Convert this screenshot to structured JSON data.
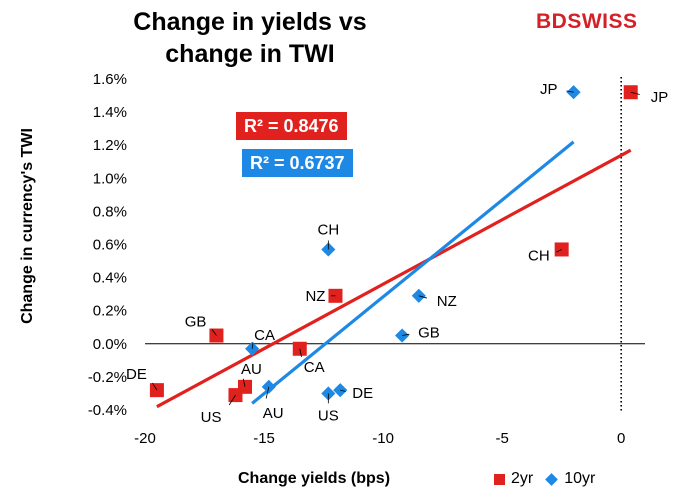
{
  "title_line1": "Change in yields vs",
  "title_line2": "change in TWI",
  "logo_text": "BDSWISS",
  "r2_2yr": "R² = 0.8476",
  "r2_10yr": "R² = 0.6737",
  "legend": {
    "two_yr": "2yr",
    "ten_yr": "10yr"
  },
  "colors": {
    "two_yr": "#e1211e",
    "ten_yr": "#1e88e5"
  },
  "chart_data": {
    "type": "scatter",
    "title": "Change in yields vs change in TWI",
    "xlabel": "Change yields  (bps)",
    "ylabel": "Change in currency's  TWI",
    "xlim": [
      -20,
      1
    ],
    "ylim": [
      -0.4,
      1.6
    ],
    "x_ticks": [
      "-20",
      "-15",
      "-10",
      "-5",
      "0"
    ],
    "x_tick_values": [
      -20,
      -15,
      -10,
      -5,
      0
    ],
    "y_ticks": [
      "1.6%",
      "1.4%",
      "1.2%",
      "1.0%",
      "0.8%",
      "0.6%",
      "0.4%",
      "0.2%",
      "0.0%",
      "-0.2%",
      "-0.4%"
    ],
    "y_tick_values": [
      1.6,
      1.4,
      1.2,
      1.0,
      0.8,
      0.6,
      0.4,
      0.2,
      0.0,
      -0.2,
      -0.4
    ],
    "series": [
      {
        "name": "2yr",
        "marker": "square",
        "points": [
          {
            "label": "JP",
            "x": 0.4,
            "y": 1.52
          },
          {
            "label": "CH",
            "x": -2.5,
            "y": 0.57
          },
          {
            "label": "NZ",
            "x": -12.0,
            "y": 0.29
          },
          {
            "label": "GB",
            "x": -17.0,
            "y": 0.05
          },
          {
            "label": "CA",
            "x": -13.5,
            "y": -0.03
          },
          {
            "label": "DE",
            "x": -19.5,
            "y": -0.28
          },
          {
            "label": "US",
            "x": -16.2,
            "y": -0.31
          },
          {
            "label": "AU",
            "x": -15.8,
            "y": -0.26
          }
        ],
        "trendline": {
          "x": [
            -19.5,
            0.4
          ],
          "y": [
            -0.38,
            1.17
          ],
          "r2": "R² = 0.8476"
        }
      },
      {
        "name": "10yr",
        "marker": "diamond",
        "points": [
          {
            "label": "JP",
            "x": -2.0,
            "y": 1.52
          },
          {
            "label": "CH",
            "x": -12.3,
            "y": 0.57
          },
          {
            "label": "NZ",
            "x": -8.5,
            "y": 0.29
          },
          {
            "label": "GB",
            "x": -9.2,
            "y": 0.05
          },
          {
            "label": "CA",
            "x": -15.5,
            "y": -0.03
          },
          {
            "label": "DE",
            "x": -11.8,
            "y": -0.28
          },
          {
            "label": "US",
            "x": -12.3,
            "y": -0.3
          },
          {
            "label": "AU",
            "x": -14.8,
            "y": -0.26
          }
        ],
        "trendline": {
          "x": [
            -15.5,
            -2.0
          ],
          "y": [
            -0.36,
            1.22
          ],
          "r2": "R² = 0.6737"
        }
      }
    ],
    "grid": false,
    "legend_position": "bottom-right"
  }
}
